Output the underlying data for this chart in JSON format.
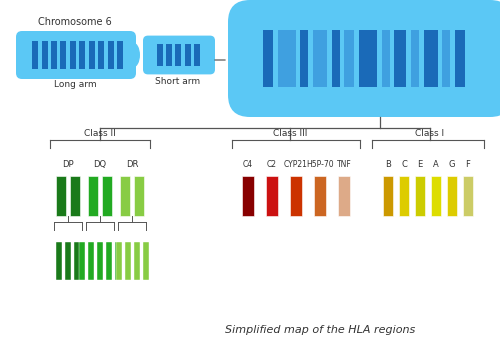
{
  "title": "Simplified map of the HLA regions",
  "chromosome_label": "Chromosome 6",
  "long_arm_label": "Long arm",
  "short_arm_label": "Short arm",
  "chromosome_color": "#5bc8f5",
  "chromosome_stripe_dark": "#1a6ab8",
  "chromosome_stripe_light": "#3fa0e0",
  "class2_label": "Class II",
  "class3_label": "Class III",
  "class1_label": "Class I",
  "class2_genes": [
    "DP",
    "DQ",
    "DR"
  ],
  "class3_genes": [
    "C4",
    "C2",
    "CYP21",
    "H5P-70",
    "TNF"
  ],
  "class1_genes": [
    "B",
    "C",
    "E",
    "A",
    "G",
    "F"
  ],
  "class2_bar_colors": [
    "#1a7a1a",
    "#22aa22",
    "#88cc44"
  ],
  "class3_bar_colors": [
    "#880000",
    "#cc1111",
    "#cc3300",
    "#cc6622",
    "#ddaa88"
  ],
  "class1_bar_colors": [
    "#cc9900",
    "#ddcc00",
    "#cccc00",
    "#dddd00",
    "#ddcc00",
    "#cccc66"
  ],
  "line_color": "#555555",
  "text_color": "#333333"
}
